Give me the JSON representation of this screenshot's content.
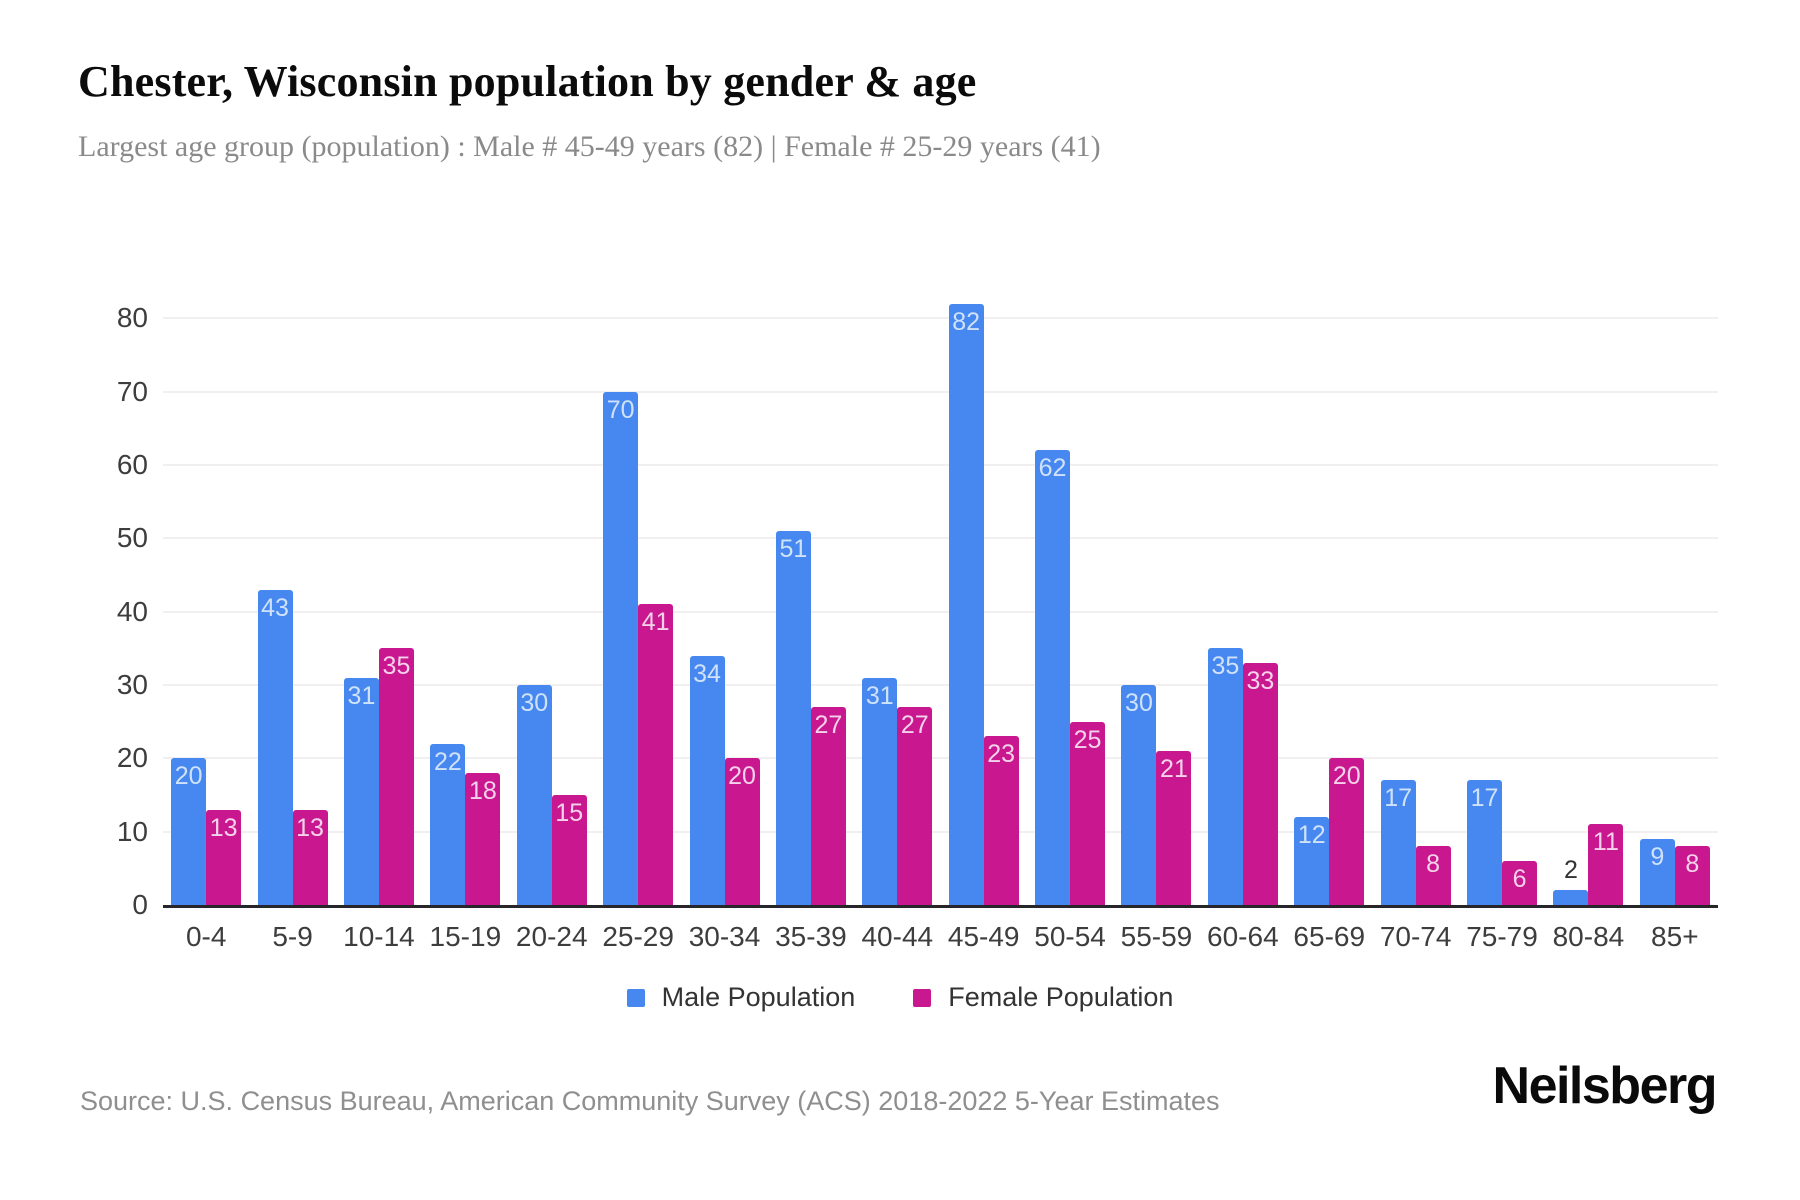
{
  "header": {
    "title": "Chester, Wisconsin population by gender & age",
    "subtitle": "Largest age group (population) : Male # 45-49 years (82) | Female # 25-29 years (41)"
  },
  "chart_data": {
    "type": "bar",
    "title": "Chester, Wisconsin population by gender & age",
    "categories": [
      "0-4",
      "5-9",
      "10-14",
      "15-19",
      "20-24",
      "25-29",
      "30-34",
      "35-39",
      "40-44",
      "45-49",
      "50-54",
      "55-59",
      "60-64",
      "65-69",
      "70-74",
      "75-79",
      "80-84",
      "85+"
    ],
    "series": [
      {
        "name": "Male Population",
        "color": "#4688ef",
        "label_color": "#cfe2fa",
        "values": [
          20,
          43,
          31,
          22,
          30,
          70,
          34,
          51,
          31,
          82,
          62,
          30,
          35,
          12,
          17,
          17,
          2,
          9
        ]
      },
      {
        "name": "Female Population",
        "color": "#c9188f",
        "label_color": "#f4d2ea",
        "values": [
          13,
          13,
          35,
          18,
          15,
          41,
          20,
          27,
          27,
          23,
          25,
          21,
          33,
          20,
          8,
          6,
          11,
          8
        ]
      }
    ],
    "xlabel": "",
    "ylabel": "",
    "ylim": [
      0,
      90
    ],
    "yticks": [
      0,
      10,
      20,
      30,
      40,
      50,
      60,
      70,
      80
    ],
    "grid": true,
    "legend_position": "bottom",
    "outside_label_color": "#333333",
    "gridline_color": "#f1eff0",
    "axis_line_color": "#26262b"
  },
  "footer": {
    "source": "Source: U.S. Census Bureau, American Community Survey (ACS) 2018-2022 5-Year Estimates",
    "brand": "Neilsberg"
  }
}
